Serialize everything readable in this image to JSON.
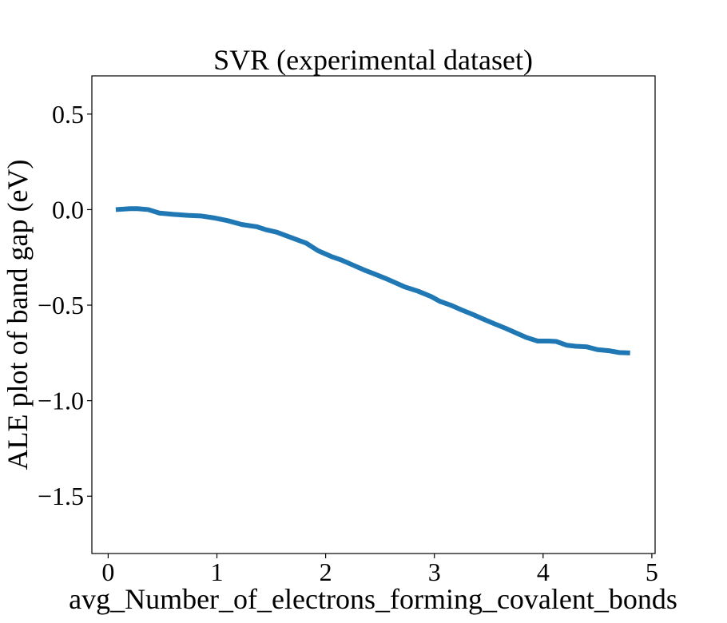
{
  "chart_data": {
    "type": "line",
    "title": "SVR (experimental dataset)",
    "xlabel": "avg_Number_of_electrons_forming_covalent_bonds",
    "ylabel": "ALE plot of band gap (eV)",
    "xlim": [
      -0.15,
      5.03
    ],
    "ylim": [
      -1.8,
      0.7
    ],
    "xticks": [
      0,
      1,
      2,
      3,
      4,
      5
    ],
    "yticks": [
      0.5,
      0.0,
      -0.5,
      -1.0,
      -1.5
    ],
    "xtick_labels": [
      "0",
      "1",
      "2",
      "3",
      "4",
      "5"
    ],
    "ytick_labels": [
      "0.5",
      "0.0",
      "−0.5",
      "−1.0",
      "−1.5"
    ],
    "grid": false,
    "colors": {
      "line": "#1f77b4",
      "axes": "#000000"
    },
    "series": [
      {
        "x": [
          0.07,
          0.2,
          0.27,
          0.37,
          0.47,
          0.6,
          0.73,
          0.85,
          0.97,
          1.1,
          1.23,
          1.37,
          1.45,
          1.55,
          1.7,
          1.82,
          1.93,
          2.05,
          2.15,
          2.25,
          2.35,
          2.45,
          2.55,
          2.65,
          2.73,
          2.85,
          2.97,
          3.05,
          3.15,
          3.25,
          3.35,
          3.45,
          3.55,
          3.65,
          3.75,
          3.85,
          3.95,
          4.05,
          4.12,
          4.22,
          4.3,
          4.4,
          4.5,
          4.6,
          4.7,
          4.8
        ],
        "values": [
          0.0,
          0.005,
          0.005,
          0.0,
          -0.018,
          -0.025,
          -0.03,
          -0.033,
          -0.043,
          -0.058,
          -0.078,
          -0.09,
          -0.105,
          -0.118,
          -0.15,
          -0.175,
          -0.215,
          -0.245,
          -0.265,
          -0.29,
          -0.315,
          -0.337,
          -0.36,
          -0.385,
          -0.405,
          -0.427,
          -0.455,
          -0.48,
          -0.5,
          -0.525,
          -0.548,
          -0.573,
          -0.597,
          -0.62,
          -0.645,
          -0.67,
          -0.688,
          -0.688,
          -0.69,
          -0.71,
          -0.715,
          -0.718,
          -0.733,
          -0.738,
          -0.748,
          -0.75
        ]
      }
    ]
  }
}
